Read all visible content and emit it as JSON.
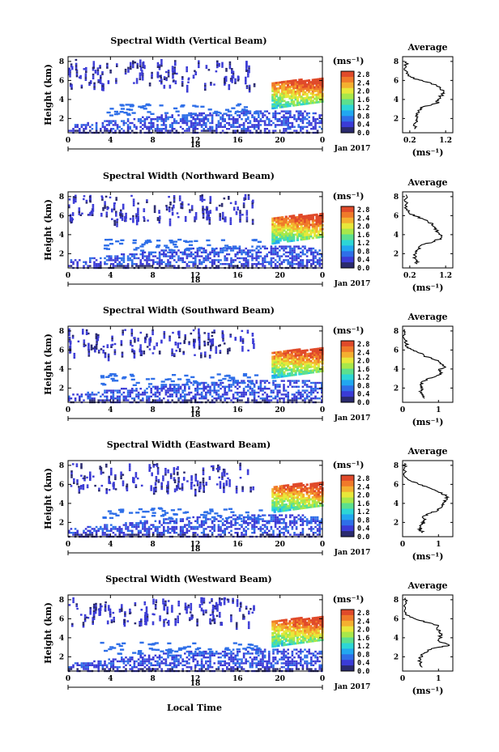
{
  "figure": {
    "xlabel_bottom": "Local Time",
    "date_label": "Jan 2017",
    "day_label": "18",
    "unit_label": "(ms⁻¹)",
    "avg_title": "Average",
    "avg_xlabel": "(ms⁻¹)",
    "colorbar_ticks": [
      "2.8",
      "2.4",
      "2.0",
      "1.6",
      "1.2",
      "0.8",
      "0.4",
      "0.0"
    ],
    "colormap": [
      "#2a2a6e",
      "#3b3bd6",
      "#2f6fe8",
      "#22a7f0",
      "#2dd6d6",
      "#5ce08e",
      "#a8e84a",
      "#e8e83a",
      "#f4b030",
      "#f07a2a",
      "#e04a2a"
    ]
  },
  "chart_data": [
    {
      "type": "heatmap",
      "title": "Spectral Width (Vertical Beam)",
      "ylabel": "Height (km)",
      "x_ticks": [
        "0",
        "4",
        "8",
        "12",
        "16",
        "20",
        "0"
      ],
      "y_ticks": [
        "8",
        "6",
        "4",
        "2"
      ],
      "xlim": [
        0,
        24
      ],
      "ylim": [
        0.5,
        8.5
      ],
      "colorbar": {
        "label": "(ms⁻¹)",
        "range": [
          0.0,
          2.8
        ]
      },
      "average": {
        "title": "Average",
        "xlabel": "(ms⁻¹)",
        "x_ticks": [
          "0.2",
          "1.2"
        ],
        "xlim": [
          0,
          1.4
        ],
        "y_ticks": [
          "8",
          "6",
          "4",
          "2"
        ],
        "ylim": [
          0.5,
          8.5
        ],
        "profile": [
          [
            0.33,
            0.9
          ],
          [
            0.34,
            1.2
          ],
          [
            0.35,
            1.5
          ],
          [
            0.37,
            1.8
          ],
          [
            0.4,
            2.1
          ],
          [
            0.42,
            2.4
          ],
          [
            0.46,
            2.7
          ],
          [
            0.5,
            3.0
          ],
          [
            0.55,
            3.2
          ],
          [
            0.8,
            3.4
          ],
          [
            0.95,
            3.6
          ],
          [
            1.0,
            3.9
          ],
          [
            1.05,
            4.2
          ],
          [
            1.1,
            4.5
          ],
          [
            1.15,
            4.8
          ],
          [
            1.05,
            5.1
          ],
          [
            0.95,
            5.4
          ],
          [
            0.8,
            5.7
          ],
          [
            0.55,
            6.0
          ],
          [
            0.3,
            6.2
          ],
          [
            0.15,
            6.5
          ],
          [
            0.1,
            7.0
          ],
          [
            0.1,
            7.5
          ],
          [
            0.1,
            8.0
          ]
        ]
      }
    },
    {
      "type": "heatmap",
      "title": "Spectral Width (Northward Beam)",
      "ylabel": "Height (km)",
      "x_ticks": [
        "0",
        "4",
        "8",
        "12",
        "16",
        "20",
        "0"
      ],
      "y_ticks": [
        "8",
        "6",
        "4",
        "2"
      ],
      "xlim": [
        0,
        24
      ],
      "ylim": [
        0.5,
        8.5
      ],
      "colorbar": {
        "label": "(ms⁻¹)",
        "range": [
          0.0,
          2.8
        ]
      },
      "average": {
        "title": "Average",
        "xlabel": "(ms⁻¹)",
        "x_ticks": [
          "0.2",
          "1.2"
        ],
        "xlim": [
          0,
          1.4
        ],
        "y_ticks": [
          "8",
          "6",
          "4",
          "2"
        ],
        "ylim": [
          0.5,
          8.5
        ],
        "profile": [
          [
            0.4,
            0.9
          ],
          [
            0.38,
            1.2
          ],
          [
            0.36,
            1.5
          ],
          [
            0.35,
            1.8
          ],
          [
            0.38,
            2.1
          ],
          [
            0.42,
            2.4
          ],
          [
            0.45,
            2.7
          ],
          [
            0.6,
            3.0
          ],
          [
            0.9,
            3.3
          ],
          [
            1.05,
            3.6
          ],
          [
            1.1,
            3.9
          ],
          [
            1.0,
            4.2
          ],
          [
            0.95,
            4.5
          ],
          [
            0.9,
            4.8
          ],
          [
            0.85,
            5.1
          ],
          [
            0.7,
            5.4
          ],
          [
            0.55,
            5.7
          ],
          [
            0.3,
            6.0
          ],
          [
            0.18,
            6.3
          ],
          [
            0.12,
            6.7
          ],
          [
            0.1,
            7.2
          ],
          [
            0.1,
            7.8
          ],
          [
            0.1,
            8.2
          ]
        ]
      }
    },
    {
      "type": "heatmap",
      "title": "Spectral Width (Southward Beam)",
      "ylabel": "Height (km)",
      "x_ticks": [
        "0",
        "4",
        "8",
        "12",
        "16",
        "20",
        "0"
      ],
      "y_ticks": [
        "8",
        "6",
        "4",
        "2"
      ],
      "xlim": [
        0,
        24
      ],
      "ylim": [
        0.5,
        8.5
      ],
      "colorbar": {
        "label": "(ms⁻¹)",
        "range": [
          0.0,
          2.8
        ]
      },
      "average": {
        "title": "Average",
        "xlabel": "(ms⁻¹)",
        "x_ticks": [
          "0",
          "1"
        ],
        "xlim": [
          0,
          1.4
        ],
        "y_ticks": [
          "8",
          "6",
          "4",
          "2"
        ],
        "ylim": [
          0.5,
          8.5
        ],
        "profile": [
          [
            0.6,
            0.9
          ],
          [
            0.55,
            1.2
          ],
          [
            0.5,
            1.5
          ],
          [
            0.52,
            1.8
          ],
          [
            0.55,
            2.1
          ],
          [
            0.5,
            2.4
          ],
          [
            0.55,
            2.7
          ],
          [
            0.7,
            3.0
          ],
          [
            0.95,
            3.3
          ],
          [
            1.1,
            3.6
          ],
          [
            1.0,
            3.9
          ],
          [
            1.2,
            4.2
          ],
          [
            1.1,
            4.5
          ],
          [
            1.0,
            4.8
          ],
          [
            0.8,
            5.1
          ],
          [
            0.6,
            5.4
          ],
          [
            0.45,
            5.7
          ],
          [
            0.3,
            6.0
          ],
          [
            0.15,
            6.3
          ],
          [
            0.08,
            6.7
          ],
          [
            0.05,
            7.2
          ],
          [
            0.05,
            7.8
          ],
          [
            0.05,
            8.2
          ]
        ]
      }
    },
    {
      "type": "heatmap",
      "title": "Spectral Width (Eastward Beam)",
      "ylabel": "Height (km)",
      "x_ticks": [
        "0",
        "4",
        "8",
        "12",
        "16",
        "20",
        "0"
      ],
      "y_ticks": [
        "8",
        "6",
        "4",
        "2"
      ],
      "xlim": [
        0,
        24
      ],
      "ylim": [
        0.5,
        8.5
      ],
      "colorbar": {
        "label": "(ms⁻¹)",
        "range": [
          0.0,
          2.8
        ]
      },
      "average": {
        "title": "Average",
        "xlabel": "(ms⁻¹)",
        "x_ticks": [
          "0",
          "1"
        ],
        "xlim": [
          0,
          1.4
        ],
        "y_ticks": [
          "8",
          "6",
          "4",
          "2"
        ],
        "ylim": [
          0.5,
          8.5
        ],
        "profile": [
          [
            0.55,
            0.9
          ],
          [
            0.5,
            1.2
          ],
          [
            0.5,
            1.5
          ],
          [
            0.55,
            1.8
          ],
          [
            0.6,
            2.1
          ],
          [
            0.58,
            2.4
          ],
          [
            0.6,
            2.7
          ],
          [
            0.8,
            3.0
          ],
          [
            1.0,
            3.3
          ],
          [
            1.1,
            3.6
          ],
          [
            1.15,
            3.9
          ],
          [
            1.2,
            4.2
          ],
          [
            1.25,
            4.5
          ],
          [
            1.2,
            4.8
          ],
          [
            1.1,
            5.1
          ],
          [
            0.9,
            5.4
          ],
          [
            0.7,
            5.7
          ],
          [
            0.45,
            6.0
          ],
          [
            0.25,
            6.3
          ],
          [
            0.1,
            6.7
          ],
          [
            0.05,
            7.2
          ],
          [
            0.05,
            7.8
          ],
          [
            0.05,
            8.2
          ]
        ]
      }
    },
    {
      "type": "heatmap",
      "title": "Spectral Width (Westward Beam)",
      "ylabel": "Height (km)",
      "x_ticks": [
        "0",
        "4",
        "8",
        "12",
        "16",
        "20",
        "0"
      ],
      "y_ticks": [
        "8",
        "6",
        "4",
        "2"
      ],
      "xlim": [
        0,
        24
      ],
      "ylim": [
        0.5,
        8.5
      ],
      "colorbar": {
        "label": "(ms⁻¹)",
        "range": [
          0.0,
          2.8
        ]
      },
      "average": {
        "title": "Average",
        "xlabel": "(ms⁻¹)",
        "x_ticks": [
          "0",
          "1"
        ],
        "xlim": [
          0,
          1.4
        ],
        "y_ticks": [
          "8",
          "6",
          "4",
          "2"
        ],
        "ylim": [
          0.5,
          8.5
        ],
        "profile": [
          [
            0.55,
            0.9
          ],
          [
            0.5,
            1.2
          ],
          [
            0.48,
            1.5
          ],
          [
            0.5,
            1.8
          ],
          [
            0.55,
            2.1
          ],
          [
            0.6,
            2.4
          ],
          [
            0.7,
            2.7
          ],
          [
            1.0,
            3.0
          ],
          [
            1.3,
            3.2
          ],
          [
            1.1,
            3.5
          ],
          [
            1.0,
            3.8
          ],
          [
            1.05,
            4.1
          ],
          [
            1.1,
            4.4
          ],
          [
            1.05,
            4.7
          ],
          [
            0.95,
            5.0
          ],
          [
            1.0,
            5.3
          ],
          [
            0.7,
            5.6
          ],
          [
            0.4,
            5.9
          ],
          [
            0.2,
            6.2
          ],
          [
            0.1,
            6.6
          ],
          [
            0.08,
            7.2
          ],
          [
            0.08,
            7.8
          ],
          [
            0.08,
            8.2
          ]
        ]
      }
    }
  ]
}
